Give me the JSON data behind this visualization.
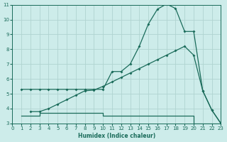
{
  "xlabel": "Humidex (Indice chaleur)",
  "bg_color": "#cdecea",
  "grid_color": "#b0d4d0",
  "line_color": "#1a6b5a",
  "xlim": [
    0,
    23
  ],
  "ylim": [
    3,
    11
  ],
  "xticks": [
    0,
    1,
    2,
    3,
    4,
    5,
    6,
    7,
    8,
    9,
    10,
    11,
    12,
    13,
    14,
    15,
    16,
    17,
    18,
    19,
    20,
    21,
    22,
    23
  ],
  "yticks": [
    3,
    4,
    5,
    6,
    7,
    8,
    9,
    10,
    11
  ],
  "line1_x": [
    1,
    2,
    3,
    4,
    5,
    6,
    7,
    8,
    9,
    10,
    11,
    12,
    13,
    14,
    15,
    16,
    17,
    18,
    19,
    20,
    21,
    22,
    23
  ],
  "line1_y": [
    5.3,
    5.3,
    5.3,
    5.3,
    5.3,
    5.3,
    5.3,
    5.3,
    5.3,
    5.3,
    6.5,
    6.5,
    7.0,
    8.2,
    9.7,
    10.7,
    11.05,
    10.75,
    9.2,
    9.2,
    5.2,
    3.9,
    3.0
  ],
  "line2_x": [
    2,
    3,
    4,
    5,
    6,
    7,
    8,
    9,
    10,
    11,
    12,
    13,
    14,
    15,
    16,
    17,
    18,
    19,
    20,
    21,
    22,
    23
  ],
  "line2_y": [
    3.8,
    3.8,
    4.0,
    4.3,
    4.6,
    4.9,
    5.2,
    5.25,
    5.5,
    5.8,
    6.1,
    6.4,
    6.7,
    7.0,
    7.3,
    7.6,
    7.9,
    8.2,
    7.6,
    5.2,
    3.9,
    3.0
  ],
  "line3_x": [
    1,
    2,
    3,
    4,
    5,
    6,
    7,
    8,
    9,
    10,
    11,
    12,
    13,
    14,
    15,
    16,
    17,
    18,
    19,
    20,
    21,
    22,
    23
  ],
  "line3_y": [
    3.5,
    3.5,
    3.7,
    3.7,
    3.7,
    3.7,
    3.7,
    3.7,
    3.7,
    3.5,
    3.5,
    3.5,
    3.5,
    3.5,
    3.5,
    3.5,
    3.5,
    3.5,
    3.5,
    3.0,
    3.0,
    3.0,
    3.0
  ]
}
